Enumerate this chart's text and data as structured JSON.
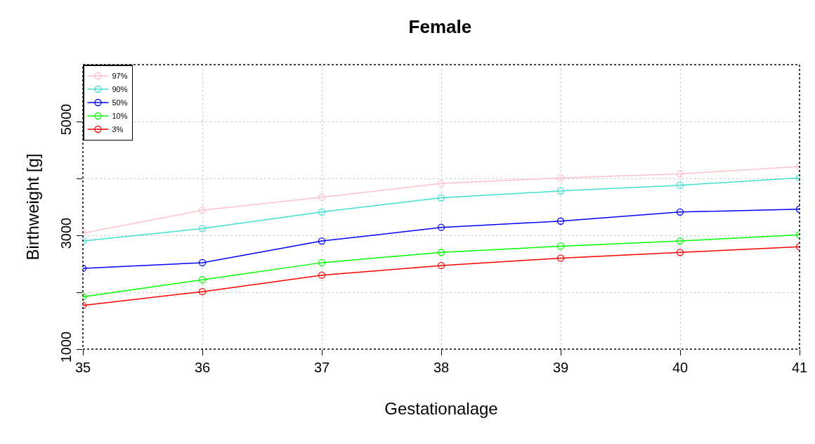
{
  "chart_data": {
    "type": "line",
    "title": "Female",
    "xlabel": "Gestationalage",
    "ylabel": "Birthweight [g]",
    "x": [
      35,
      36,
      37,
      38,
      39,
      40,
      41
    ],
    "series": [
      {
        "name": "97%",
        "color": "#ffc0cb",
        "values": [
          3040,
          3440,
          3670,
          3910,
          4010,
          4080,
          4210
        ]
      },
      {
        "name": "90%",
        "color": "#40e0d0",
        "values": [
          2900,
          3120,
          3410,
          3660,
          3780,
          3880,
          4010
        ]
      },
      {
        "name": "50%",
        "color": "#0000ff",
        "values": [
          2420,
          2520,
          2900,
          3140,
          3250,
          3410,
          3460
        ]
      },
      {
        "name": "10%",
        "color": "#00ff00",
        "values": [
          1920,
          2220,
          2520,
          2700,
          2810,
          2900,
          3010
        ]
      },
      {
        "name": "3%",
        "color": "#ff0000",
        "values": [
          1770,
          2010,
          2300,
          2470,
          2600,
          2700,
          2800
        ]
      }
    ],
    "xlim": [
      35,
      41
    ],
    "xticks": [
      35,
      36,
      37,
      38,
      39,
      40,
      41
    ],
    "ylim": [
      1000,
      6000
    ],
    "yticks": [
      1000,
      {
        "value": 2000,
        "label": null
      },
      3000,
      {
        "value": 4000,
        "label": null
      },
      5000
    ],
    "grid": true,
    "legend": "top left",
    "marker": "circle",
    "line_style": "solid"
  }
}
